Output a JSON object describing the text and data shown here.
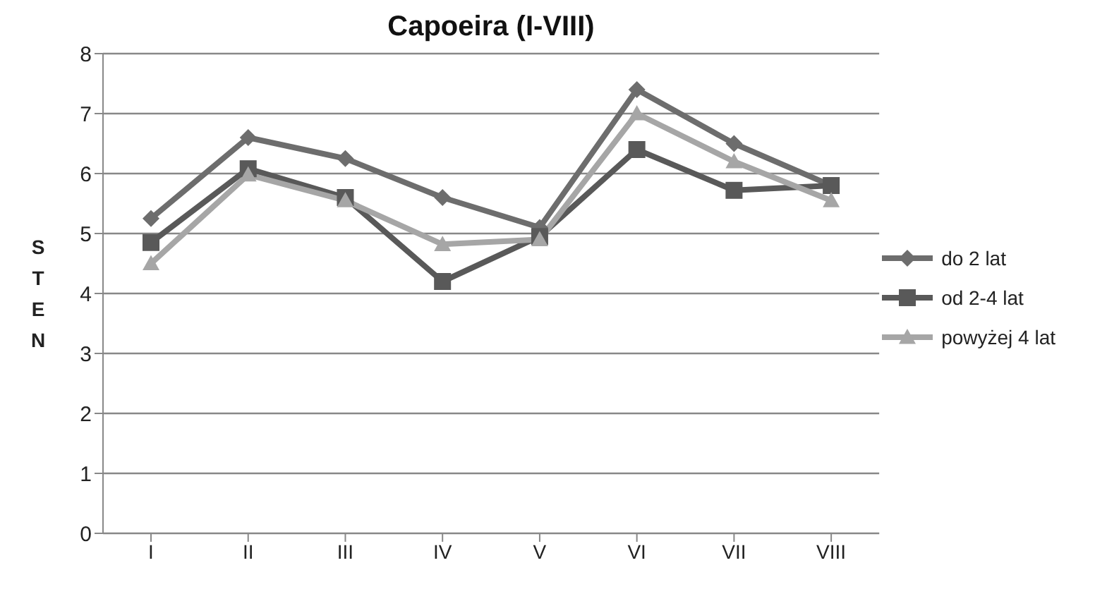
{
  "chart_data": {
    "type": "line",
    "title": "Capoeira (I-VIII)",
    "ylabel": "STEN",
    "categories": [
      "I",
      "II",
      "III",
      "IV",
      "V",
      "VI",
      "VII",
      "VIII"
    ],
    "series": [
      {
        "name": "do 2 lat",
        "color": "#6d6d6d",
        "marker": "diamond",
        "values": [
          5.25,
          6.6,
          6.25,
          5.6,
          5.1,
          7.4,
          6.5,
          5.8
        ]
      },
      {
        "name": "od 2-4 lat",
        "color": "#595959",
        "marker": "square",
        "values": [
          4.85,
          6.08,
          5.6,
          4.2,
          4.95,
          6.4,
          5.72,
          5.8
        ]
      },
      {
        "name": "powyżej 4 lat",
        "color": "#a6a6a6",
        "marker": "triangle",
        "values": [
          4.5,
          5.98,
          5.55,
          4.82,
          4.9,
          7.0,
          6.2,
          5.55
        ]
      }
    ],
    "ylim": [
      0,
      8
    ],
    "yticks": [
      0,
      1,
      2,
      3,
      4,
      5,
      6,
      7,
      8
    ],
    "grid": "y",
    "legend": "right",
    "line_style": "solid"
  }
}
